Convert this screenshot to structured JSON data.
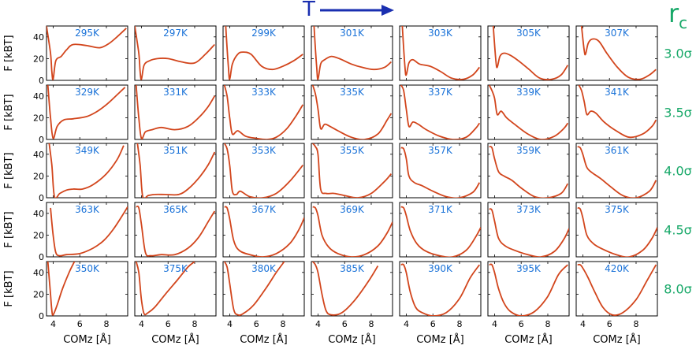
{
  "header": {
    "temperature_symbol": "T",
    "cutoff_symbol": "r",
    "cutoff_subscript": "c"
  },
  "colors": {
    "curve": "#d2451c",
    "temp_label": "#1a72d8",
    "cutoff_label": "#17a868",
    "arrow": "#1a2fb0",
    "axis": "#000000"
  },
  "axes": {
    "ylabel": "F [kBT]",
    "xlabel": "COMz [Å]",
    "xticks": [
      "4",
      "6",
      "8"
    ],
    "yticks": [
      "0",
      "20",
      "40"
    ],
    "xlim": [
      3.5,
      9.6
    ],
    "ylim": [
      0,
      50
    ]
  },
  "chart_data": {
    "type": "line",
    "grid": false,
    "rows": [
      {
        "cutoff": "3.0σ",
        "panels": [
          {
            "T": "295K",
            "x": [
              3.5,
              3.8,
              3.9,
              4.0,
              4.2,
              4.6,
              5.0,
              5.5,
              6.5,
              7.5,
              8.2,
              8.8,
              9.5
            ],
            "y": [
              50,
              25,
              8,
              1,
              18,
              22,
              28,
              33,
              32,
              30,
              34,
              40,
              48
            ]
          },
          {
            "T": "297K",
            "x": [
              3.5,
              3.8,
              3.9,
              4.0,
              4.2,
              4.6,
              5.2,
              6.0,
              7.0,
              8.0,
              8.8,
              9.5
            ],
            "y": [
              50,
              25,
              8,
              1,
              14,
              18,
              20,
              20,
              17,
              16,
              24,
              33
            ]
          },
          {
            "T": "299K",
            "x": [
              3.7,
              3.9,
              4.0,
              4.2,
              4.6,
              5.0,
              5.6,
              6.4,
              7.2,
              8.0,
              8.8,
              9.5
            ],
            "y": [
              50,
              12,
              1,
              15,
              24,
              26,
              24,
              13,
              10,
              13,
              18,
              24
            ]
          },
          {
            "T": "301K",
            "x": [
              3.7,
              3.9,
              4.0,
              4.2,
              4.5,
              5.0,
              5.6,
              6.5,
              7.3,
              8.2,
              9.0,
              9.5
            ],
            "y": [
              50,
              12,
              1,
              15,
              19,
              22,
              20,
              15,
              12,
              10,
              12,
              17
            ]
          },
          {
            "T": "303K",
            "x": [
              3.7,
              3.9,
              4.0,
              4.2,
              4.5,
              5.0,
              5.8,
              6.6,
              7.4,
              8.3,
              9.0,
              9.5
            ],
            "y": [
              50,
              12,
              5,
              16,
              19,
              15,
              13,
              8,
              2,
              1,
              5,
              12
            ]
          },
          {
            "T": "305K",
            "x": [
              3.9,
              4.1,
              4.2,
              4.4,
              4.7,
              5.2,
              5.8,
              6.6,
              7.4,
              8.3,
              9.0,
              9.5
            ],
            "y": [
              50,
              18,
              12,
              22,
              25,
              23,
              18,
              10,
              2,
              1,
              5,
              14
            ]
          },
          {
            "T": "307K",
            "x": [
              3.9,
              4.1,
              4.2,
              4.4,
              4.7,
              5.2,
              5.8,
              6.6,
              7.4,
              8.3,
              9.0,
              9.5
            ],
            "y": [
              50,
              28,
              24,
              34,
              38,
              36,
              25,
              12,
              3,
              1,
              5,
              10
            ]
          }
        ]
      },
      {
        "cutoff": "3.5σ",
        "panels": [
          {
            "T": "329K",
            "x": [
              3.6,
              3.8,
              4.0,
              4.3,
              4.8,
              5.5,
              6.5,
              7.2,
              8.0,
              8.8,
              9.4
            ],
            "y": [
              50,
              20,
              1,
              12,
              18,
              19,
              21,
              25,
              32,
              41,
              48
            ]
          },
          {
            "T": "331K",
            "x": [
              3.6,
              3.8,
              4.0,
              4.3,
              4.8,
              5.5,
              6.5,
              7.5,
              8.3,
              9.0,
              9.5
            ],
            "y": [
              50,
              20,
              1,
              7,
              9,
              11,
              9,
              12,
              20,
              30,
              40
            ]
          },
          {
            "T": "333K",
            "x": [
              3.6,
              3.8,
              4.0,
              4.2,
              4.6,
              5.2,
              6.0,
              6.8,
              7.5,
              8.3,
              9.0,
              9.5
            ],
            "y": [
              50,
              40,
              20,
              5,
              8,
              3,
              1,
              0,
              2,
              10,
              22,
              32
            ]
          },
          {
            "T": "335K",
            "x": [
              3.6,
              3.8,
              4.0,
              4.2,
              4.5,
              4.9,
              5.5,
              6.5,
              7.5,
              8.5,
              9.2,
              9.5
            ],
            "y": [
              50,
              42,
              28,
              10,
              14,
              12,
              8,
              2,
              0,
              5,
              18,
              24
            ]
          },
          {
            "T": "337K",
            "x": [
              3.6,
              3.8,
              4.0,
              4.2,
              4.5,
              4.9,
              5.5,
              6.5,
              7.5,
              8.5,
              9.2,
              9.5
            ],
            "y": [
              50,
              45,
              28,
              12,
              16,
              14,
              9,
              3,
              0,
              2,
              10,
              15
            ]
          },
          {
            "T": "339K",
            "x": [
              3.6,
              3.8,
              4.0,
              4.2,
              4.5,
              4.9,
              5.5,
              6.5,
              7.5,
              8.5,
              9.2,
              9.5
            ],
            "y": [
              50,
              45,
              38,
              23,
              26,
              20,
              14,
              5,
              0,
              3,
              10,
              15
            ]
          },
          {
            "T": "341K",
            "x": [
              3.7,
              3.9,
              4.1,
              4.3,
              4.6,
              5.0,
              5.6,
              6.5,
              7.5,
              8.5,
              9.2,
              9.5
            ],
            "y": [
              50,
              45,
              35,
              23,
              26,
              24,
              16,
              8,
              2,
              5,
              12,
              18
            ]
          }
        ]
      },
      {
        "cutoff": "4.0σ",
        "panels": [
          {
            "T": "349K",
            "x": [
              3.7,
              3.9,
              4.1,
              4.5,
              5.0,
              5.5,
              6.2,
              7.0,
              8.0,
              8.8,
              9.3
            ],
            "y": [
              50,
              30,
              1,
              4,
              7,
              8,
              8,
              12,
              22,
              35,
              48
            ]
          },
          {
            "T": "351K",
            "x": [
              3.7,
              3.9,
              4.1,
              4.5,
              5.0,
              5.8,
              6.8,
              7.5,
              8.3,
              9.0,
              9.5
            ],
            "y": [
              50,
              30,
              1,
              2,
              3,
              3,
              3,
              8,
              18,
              30,
              42
            ]
          },
          {
            "T": "353K",
            "x": [
              3.6,
              3.8,
              4.0,
              4.2,
              4.5,
              4.8,
              5.5,
              6.5,
              7.5,
              8.5,
              9.5
            ],
            "y": [
              50,
              45,
              30,
              6,
              3,
              6,
              1,
              0,
              4,
              15,
              30
            ]
          },
          {
            "T": "355K",
            "x": [
              3.6,
              3.8,
              4.0,
              4.2,
              4.6,
              5.2,
              6.0,
              7.0,
              8.0,
              9.0,
              9.5
            ],
            "y": [
              50,
              47,
              40,
              8,
              4,
              4,
              2,
              0,
              4,
              15,
              22
            ]
          },
          {
            "T": "357K",
            "x": [
              3.6,
              3.8,
              4.0,
              4.2,
              4.6,
              5.2,
              6.0,
              7.0,
              8.0,
              9.0,
              9.5
            ],
            "y": [
              46,
              45,
              36,
              20,
              14,
              11,
              6,
              1,
              0,
              5,
              14
            ]
          },
          {
            "T": "359K",
            "x": [
              3.6,
              3.8,
              4.0,
              4.3,
              4.7,
              5.3,
              6.0,
              7.0,
              8.0,
              9.0,
              9.5
            ],
            "y": [
              47,
              46,
              36,
              24,
              20,
              16,
              9,
              1,
              0,
              4,
              13
            ]
          },
          {
            "T": "361K",
            "x": [
              3.6,
              3.8,
              4.0,
              4.3,
              4.7,
              5.3,
              6.0,
              7.0,
              8.0,
              9.0,
              9.5
            ],
            "y": [
              47,
              46,
              40,
              28,
              23,
              18,
              11,
              2,
              0,
              6,
              16
            ]
          }
        ]
      },
      {
        "cutoff": "4.5σ",
        "panels": [
          {
            "T": "363K",
            "x": [
              3.8,
              4.0,
              4.2,
              4.5,
              5.0,
              6.0,
              7.0,
              7.8,
              8.5,
              9.2,
              9.6
            ],
            "y": [
              45,
              20,
              4,
              1,
              2,
              3,
              8,
              15,
              25,
              38,
              46
            ]
          },
          {
            "T": "365K",
            "x": [
              3.6,
              3.8,
              4.0,
              4.3,
              4.7,
              5.5,
              6.5,
              7.5,
              8.3,
              9.0,
              9.5
            ],
            "y": [
              46,
              45,
              30,
              4,
              1,
              2,
              2,
              8,
              18,
              32,
              42
            ]
          },
          {
            "T": "367K",
            "x": [
              3.6,
              3.8,
              4.0,
              4.3,
              4.7,
              5.5,
              6.5,
              7.5,
              8.5,
              9.2,
              9.6
            ],
            "y": [
              46,
              45,
              35,
              15,
              6,
              2,
              0,
              3,
              12,
              25,
              36
            ]
          },
          {
            "T": "369K",
            "x": [
              3.6,
              3.8,
              4.0,
              4.3,
              4.8,
              5.5,
              6.5,
              7.5,
              8.5,
              9.2,
              9.6
            ],
            "y": [
              46,
              45,
              38,
              20,
              9,
              3,
              0,
              2,
              10,
              22,
              32
            ]
          },
          {
            "T": "371K",
            "x": [
              3.6,
              3.8,
              4.0,
              4.3,
              4.8,
              5.5,
              6.5,
              7.5,
              8.5,
              9.2,
              9.6
            ],
            "y": [
              46,
              45,
              38,
              24,
              12,
              5,
              1,
              0,
              6,
              18,
              27
            ]
          },
          {
            "T": "373K",
            "x": [
              3.6,
              3.8,
              4.0,
              4.3,
              4.8,
              5.5,
              6.5,
              7.5,
              8.5,
              9.2,
              9.6
            ],
            "y": [
              44,
              43,
              33,
              17,
              10,
              6,
              2,
              0,
              5,
              16,
              26
            ]
          },
          {
            "T": "375K",
            "x": [
              3.6,
              3.8,
              4.0,
              4.3,
              4.8,
              5.5,
              6.5,
              7.5,
              8.5,
              9.2,
              9.6
            ],
            "y": [
              45,
              44,
              36,
              20,
              12,
              7,
              2,
              0,
              6,
              17,
              27
            ]
          }
        ]
      },
      {
        "cutoff": "8.0σ",
        "panels": [
          {
            "T": "350K",
            "x": [
              3.6,
              3.8,
              3.9,
              4.0,
              4.3,
              4.7,
              5.2,
              5.6
            ],
            "y": [
              50,
              20,
              5,
              1,
              10,
              25,
              40,
              50
            ]
          },
          {
            "T": "375K",
            "x": [
              3.6,
              3.8,
              4.0,
              4.2,
              4.5,
              5.0,
              5.8,
              6.7,
              7.5,
              8.0
            ],
            "y": [
              50,
              40,
              15,
              2,
              3,
              8,
              20,
              33,
              45,
              50
            ]
          },
          {
            "T": "380K",
            "x": [
              3.6,
              3.8,
              4.0,
              4.3,
              4.6,
              5.0,
              5.8,
              6.7,
              7.5,
              8.1
            ],
            "y": [
              50,
              45,
              30,
              6,
              1,
              2,
              10,
              25,
              40,
              50
            ]
          },
          {
            "T": "385K",
            "x": [
              3.6,
              3.8,
              4.0,
              4.3,
              4.6,
              5.0,
              5.8,
              6.8,
              7.8,
              8.5
            ],
            "y": [
              50,
              47,
              40,
              20,
              5,
              1,
              3,
              15,
              32,
              46
            ]
          },
          {
            "T": "390K",
            "x": [
              3.6,
              3.8,
              4.0,
              4.3,
              4.7,
              5.2,
              6.0,
              7.0,
              8.0,
              8.8,
              9.5
            ],
            "y": [
              47,
              47,
              40,
              22,
              8,
              3,
              0,
              3,
              16,
              35,
              47
            ]
          },
          {
            "T": "395K",
            "x": [
              3.6,
              3.8,
              4.0,
              4.3,
              4.7,
              5.2,
              6.0,
              7.0,
              8.0,
              8.8,
              9.5
            ],
            "y": [
              47,
              47,
              40,
              25,
              12,
              4,
              0,
              4,
              18,
              38,
              47
            ]
          },
          {
            "T": "420K",
            "x": [
              3.6,
              3.8,
              4.0,
              4.4,
              4.9,
              5.5,
              6.2,
              7.0,
              8.0,
              8.8,
              9.5
            ],
            "y": [
              47,
              47,
              44,
              35,
              22,
              8,
              1,
              3,
              15,
              32,
              47
            ]
          }
        ]
      }
    ]
  }
}
